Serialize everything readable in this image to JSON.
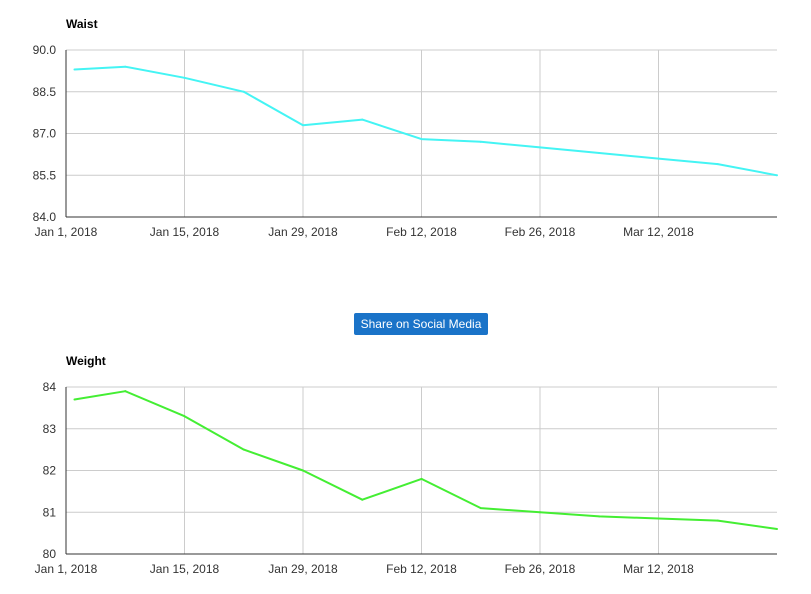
{
  "share_button": {
    "label": "Share on Social Media"
  },
  "chart_data": [
    {
      "type": "line",
      "title": "Waist",
      "xlabel": "",
      "ylabel": "",
      "x_tick_labels": [
        "Jan 1, 2018",
        "Jan 15, 2018",
        "Jan 29, 2018",
        "Feb 12, 2018",
        "Feb 26, 2018",
        "Mar 12, 2018"
      ],
      "x_ticks": [
        "2018-01-01",
        "2018-01-15",
        "2018-01-29",
        "2018-02-12",
        "2018-02-26",
        "2018-03-12"
      ],
      "x_range": [
        "2018-01-01",
        "2018-03-26"
      ],
      "y_tick_labels": [
        "84.0",
        "85.5",
        "87.0",
        "88.5",
        "90.0"
      ],
      "ylim": [
        84,
        90
      ],
      "grid": true,
      "legend": "none",
      "color": "#44f4f4",
      "series": [
        {
          "x": [
            "2018-01-02",
            "2018-01-08",
            "2018-01-15",
            "2018-01-22",
            "2018-01-29",
            "2018-02-05",
            "2018-02-12",
            "2018-02-19",
            "2018-02-26",
            "2018-03-05",
            "2018-03-12",
            "2018-03-19",
            "2018-03-26"
          ],
          "values": [
            89.3,
            89.4,
            89.0,
            88.5,
            87.3,
            87.5,
            86.8,
            86.7,
            86.5,
            86.3,
            86.1,
            85.9,
            85.5
          ]
        }
      ]
    },
    {
      "type": "line",
      "title": "Weight",
      "xlabel": "",
      "ylabel": "",
      "x_tick_labels": [
        "Jan 1, 2018",
        "Jan 15, 2018",
        "Jan 29, 2018",
        "Feb 12, 2018",
        "Feb 26, 2018",
        "Mar 12, 2018"
      ],
      "x_ticks": [
        "2018-01-01",
        "2018-01-15",
        "2018-01-29",
        "2018-02-12",
        "2018-02-26",
        "2018-03-12"
      ],
      "x_range": [
        "2018-01-01",
        "2018-03-26"
      ],
      "y_tick_labels": [
        "80",
        "81",
        "82",
        "83",
        "84"
      ],
      "ylim": [
        80,
        84
      ],
      "grid": true,
      "legend": "none",
      "color": "#44ee33",
      "series": [
        {
          "x": [
            "2018-01-02",
            "2018-01-08",
            "2018-01-15",
            "2018-01-22",
            "2018-01-29",
            "2018-02-05",
            "2018-02-12",
            "2018-02-19",
            "2018-02-26",
            "2018-03-05",
            "2018-03-12",
            "2018-03-19",
            "2018-03-26"
          ],
          "values": [
            83.7,
            83.9,
            83.3,
            82.5,
            82.0,
            81.3,
            81.8,
            81.1,
            81.0,
            80.9,
            80.85,
            80.8,
            80.6
          ]
        }
      ]
    }
  ]
}
